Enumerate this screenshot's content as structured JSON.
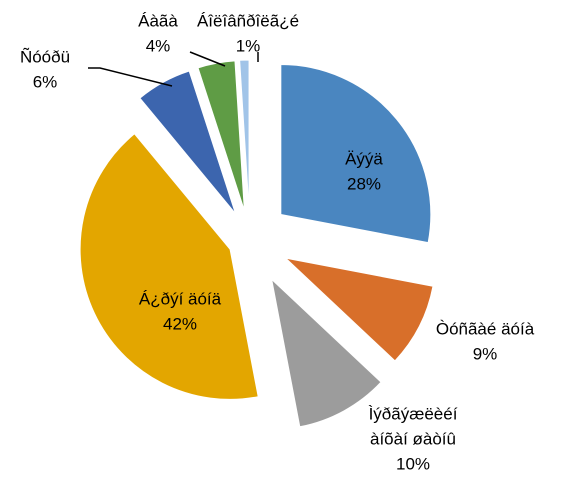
{
  "chart_data": {
    "type": "pie",
    "categories": [
      [
        "Äýýä"
      ],
      [
        "Òóñãàé äóíà"
      ],
      [
        "Ìýðãýæëèéí",
        "àíõàí øàòíû"
      ],
      [
        "Á¿ðýí äóíä"
      ],
      [
        "Ñóóðü"
      ],
      [
        "Áàãà"
      ],
      [
        "Áîëîâñðîëã¿é"
      ]
    ],
    "values": [
      28,
      9,
      10,
      42,
      6,
      4,
      1
    ],
    "value_labels": [
      "28%",
      "9%",
      "10%",
      "42%",
      "6%",
      "4%",
      "1%"
    ],
    "colors": [
      "#4a86c0",
      "#d86f2a",
      "#9c9c9c",
      "#e3a600",
      "#3c65ae",
      "#5f9c45",
      "#a1c4e8"
    ]
  }
}
